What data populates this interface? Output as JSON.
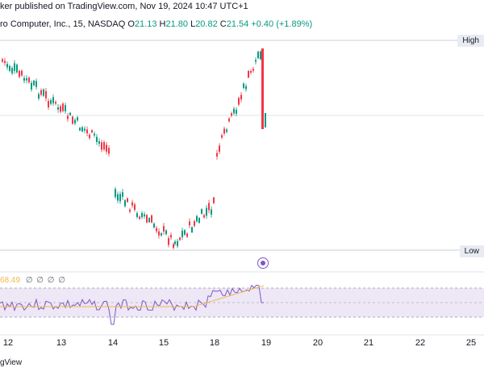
{
  "header": {
    "published_text": "ker published on TradingView.com, Nov 19, 2024 10:47 UTC+1"
  },
  "symbol": {
    "name": "ro Computer, Inc., 15, NASDAQ",
    "o_label": "O",
    "o_value": "21.13",
    "h_label": "H",
    "h_value": "21.80",
    "l_label": "L",
    "l_value": "20.82",
    "c_label": "C",
    "c_value": "21.54",
    "change": "+0.40 (+1.89%)"
  },
  "levels": {
    "high_label": "High",
    "low_label": "Low"
  },
  "rsi": {
    "value": "68.49",
    "extra": "∅ ∅ ∅ ∅"
  },
  "xaxis": {
    "labels": [
      "12",
      "13",
      "14",
      "15",
      "18",
      "19",
      "20",
      "21",
      "22",
      "25"
    ]
  },
  "footer": {
    "text": "gView"
  },
  "colors": {
    "up": "#089981",
    "down": "#f23645",
    "rsi_line": "#7e57c2",
    "rsi_ma": "#f2b84b",
    "rsi_band": "#ede7f6"
  },
  "icons": {
    "event": "event-marker-icon"
  }
}
